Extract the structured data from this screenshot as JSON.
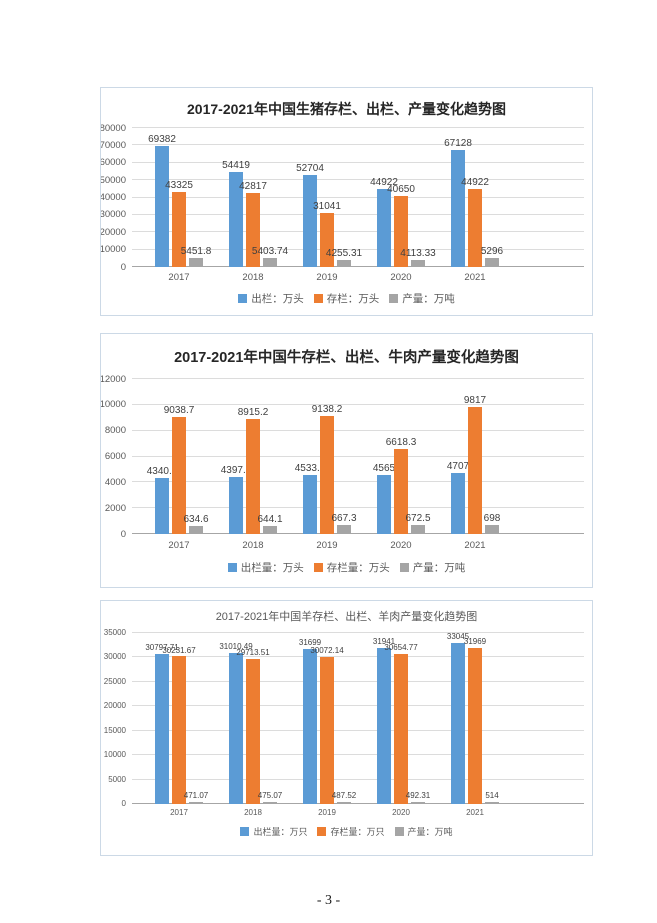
{
  "page": {
    "number": "- 3 -"
  },
  "colors": {
    "blue": "#5B9BD5",
    "orange": "#ED7D31",
    "gray": "#A5A5A5",
    "grid": "#dcdcdc",
    "axis_text": "#595959",
    "data_label_text": "#404040",
    "chart_border": "#ccd9e6"
  },
  "chart_data": [
    {
      "type": "bar",
      "title": "2017-2021年中国生猪存栏、出栏、产量变化趋势图",
      "categories": [
        "2017",
        "2018",
        "2019",
        "2020",
        "2021"
      ],
      "series": [
        {
          "name": "出栏：万头",
          "color_key": "blue",
          "values": [
            69382,
            54419,
            52704,
            44922,
            67128
          ]
        },
        {
          "name": "存栏：万头",
          "color_key": "orange",
          "values": [
            43325,
            42817,
            31041,
            40650,
            44922
          ]
        },
        {
          "name": "产量：万吨",
          "color_key": "gray",
          "values": [
            5451.8,
            5403.74,
            4255.31,
            4113.33,
            5296
          ]
        }
      ],
      "xlabel": "",
      "ylabel": "",
      "ylim": [
        0,
        80000
      ],
      "yticks": [
        0,
        10000,
        20000,
        30000,
        40000,
        50000,
        60000,
        70000,
        80000
      ],
      "grid": true,
      "legend_position": "bottom",
      "data_labels": true
    },
    {
      "type": "bar",
      "title": "2017-2021年中国牛存栏、出栏、牛肉产量变化趋势图",
      "categories": [
        "2017",
        "2018",
        "2019",
        "2020",
        "2021"
      ],
      "series": [
        {
          "name": "出栏量：万头",
          "color_key": "blue",
          "values": [
            4340.3,
            4397.5,
            4533.9,
            4565,
            4707
          ]
        },
        {
          "name": "存栏量：万头",
          "color_key": "orange",
          "values": [
            9038.7,
            8915.2,
            9138.2,
            6618.3,
            9817
          ]
        },
        {
          "name": "产量：万吨",
          "color_key": "gray",
          "values": [
            634.6,
            644.1,
            667.3,
            672.5,
            698
          ]
        }
      ],
      "xlabel": "",
      "ylabel": "",
      "ylim": [
        0,
        12000
      ],
      "yticks": [
        0,
        2000,
        4000,
        6000,
        8000,
        10000,
        12000
      ],
      "grid": true,
      "legend_position": "bottom",
      "data_labels": true
    },
    {
      "type": "bar",
      "title": "2017-2021年中国羊存栏、出栏、羊肉产量变化趋势图",
      "categories": [
        "2017",
        "2018",
        "2019",
        "2020",
        "2021"
      ],
      "series": [
        {
          "name": "出栏量：万只",
          "color_key": "blue",
          "values": [
            30797.71,
            31010.49,
            31699,
            31941,
            33045
          ]
        },
        {
          "name": "存栏量：万只",
          "color_key": "orange",
          "values": [
            30231.67,
            29713.51,
            30072.14,
            30654.77,
            31969
          ]
        },
        {
          "name": "产量：万吨",
          "color_key": "gray",
          "values": [
            471.07,
            475.07,
            487.52,
            492.31,
            514
          ]
        }
      ],
      "xlabel": "",
      "ylabel": "",
      "ylim": [
        0,
        35000
      ],
      "yticks": [
        0,
        5000,
        10000,
        15000,
        20000,
        25000,
        30000,
        35000
      ],
      "grid": true,
      "legend_position": "bottom",
      "data_labels": true
    }
  ]
}
